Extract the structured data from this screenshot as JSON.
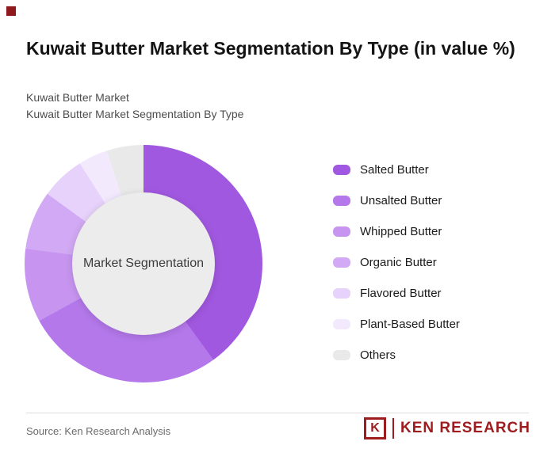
{
  "header": {
    "title": "Kuwait Butter Market Segmentation By Type (in value %)",
    "subtitle1": "Kuwait Butter Market",
    "subtitle2": "Kuwait Butter Market Segmentation By Type"
  },
  "chart_data": {
    "type": "pie",
    "variant": "donut",
    "title": "Kuwait Butter Market Segmentation By Type (in value %)",
    "center_label": "Market Segmentation",
    "legend_position": "right",
    "start_angle_deg": 0,
    "unit": "%",
    "categories": [
      "Salted Butter",
      "Unsalted Butter",
      "Whipped Butter",
      "Organic Butter",
      "Flavored Butter",
      "Plant-Based Butter",
      "Others"
    ],
    "values": [
      40,
      27,
      10,
      8,
      6,
      4,
      5
    ],
    "colors": [
      "#a158e0",
      "#b478ea",
      "#c795f0",
      "#d2a9f4",
      "#e6d2fa",
      "#f2e9fd",
      "#e9e9e9"
    ],
    "hole_color": "#ececec"
  },
  "footer": {
    "source": "Source: Ken Research Analysis",
    "logo_letter": "K",
    "logo_text": "KEN RESEARCH"
  },
  "colors": {
    "brand_red": "#9e1b1e",
    "brand_mark": "#8e1a1d"
  }
}
